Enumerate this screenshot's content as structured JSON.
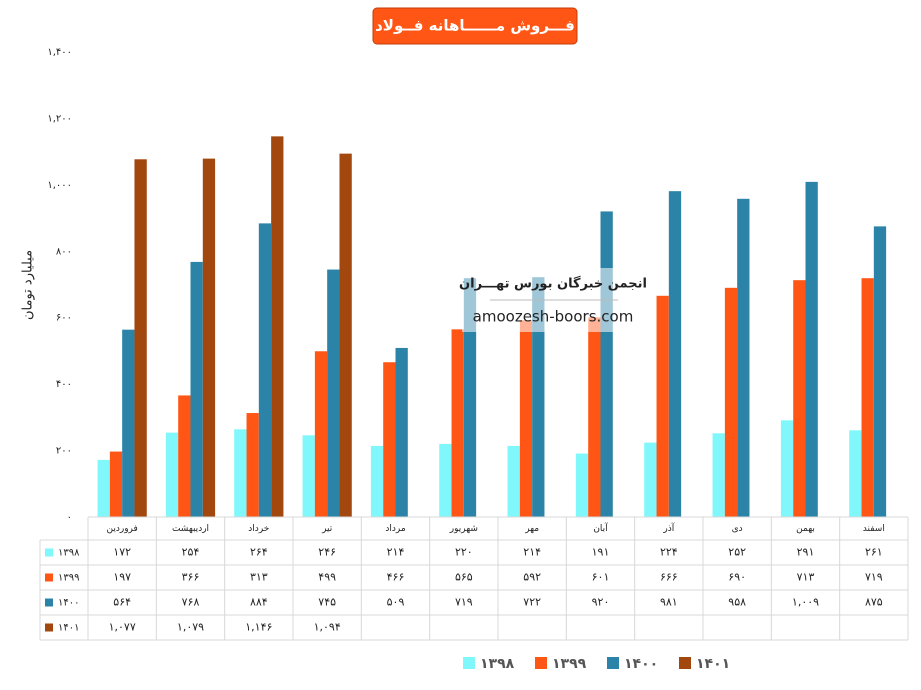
{
  "chart_data": {
    "type": "bar",
    "title": "فـــروش مــــــاهانه فــولاد",
    "y_label": "میلیارد تومان",
    "annotations": [
      "انجمن خبرگان بورس تهـــران",
      "amoozesh-boors.com"
    ],
    "categories": [
      "فروردین",
      "اردیبهشت",
      "خرداد",
      "تیر",
      "مرداد",
      "شهریور",
      "مهر",
      "آبان",
      "آذر",
      "دی",
      "بهمن",
      "اسفند"
    ],
    "series": [
      {
        "name": "۱۳۹۸",
        "color": "#7ff7fb",
        "values": [
          172,
          254,
          264,
          246,
          214,
          220,
          214,
          191,
          224,
          252,
          291,
          261
        ],
        "value_labels": [
          "۱۷۲",
          "۲۵۴",
          "۲۶۴",
          "۲۴۶",
          "۲۱۴",
          "۲۲۰",
          "۲۱۴",
          "۱۹۱",
          "۲۲۴",
          "۲۵۲",
          "۲۹۱",
          "۲۶۱"
        ]
      },
      {
        "name": "۱۳۹۹",
        "color": "#ff5616",
        "values": [
          197,
          366,
          313,
          499,
          466,
          565,
          592,
          601,
          666,
          690,
          713,
          719
        ],
        "value_labels": [
          "۱۹۷",
          "۳۶۶",
          "۳۱۳",
          "۴۹۹",
          "۴۶۶",
          "۵۶۵",
          "۵۹۲",
          "۶۰۱",
          "۶۶۶",
          "۶۹۰",
          "۷۱۳",
          "۷۱۹"
        ]
      },
      {
        "name": "۱۴۰۰",
        "color": "#2b84a8",
        "values": [
          564,
          768,
          884,
          745,
          509,
          719,
          722,
          920,
          981,
          958,
          1009,
          875
        ],
        "value_labels": [
          "۵۶۴",
          "۷۶۸",
          "۸۸۴",
          "۷۴۵",
          "۵۰۹",
          "۷۱۹",
          "۷۲۲",
          "۹۲۰",
          "۹۸۱",
          "۹۵۸",
          "۱,۰۰۹",
          "۸۷۵"
        ]
      },
      {
        "name": "۱۴۰۱",
        "color": "#a2480f",
        "values": [
          1077,
          1079,
          1146,
          1094,
          null,
          null,
          null,
          null,
          null,
          null,
          null,
          null
        ],
        "value_labels": [
          "۱,۰۷۷",
          "۱,۰۷۹",
          "۱,۱۴۶",
          "۱,۰۹۴",
          null,
          null,
          null,
          null,
          null,
          null,
          null,
          null
        ]
      }
    ],
    "ylim": [
      0,
      1400
    ],
    "yticks": [
      {
        "value": 0,
        "label": "۰"
      },
      {
        "value": 200,
        "label": "۲۰۰"
      },
      {
        "value": 400,
        "label": "۴۰۰"
      },
      {
        "value": 600,
        "label": "۶۰۰"
      },
      {
        "value": 800,
        "label": "۸۰۰"
      },
      {
        "value": 1000,
        "label": "۱,۰۰۰"
      },
      {
        "value": 1200,
        "label": "۱,۲۰۰"
      },
      {
        "value": 1400,
        "label": "۱,۴۰۰"
      }
    ],
    "grid": false
  }
}
